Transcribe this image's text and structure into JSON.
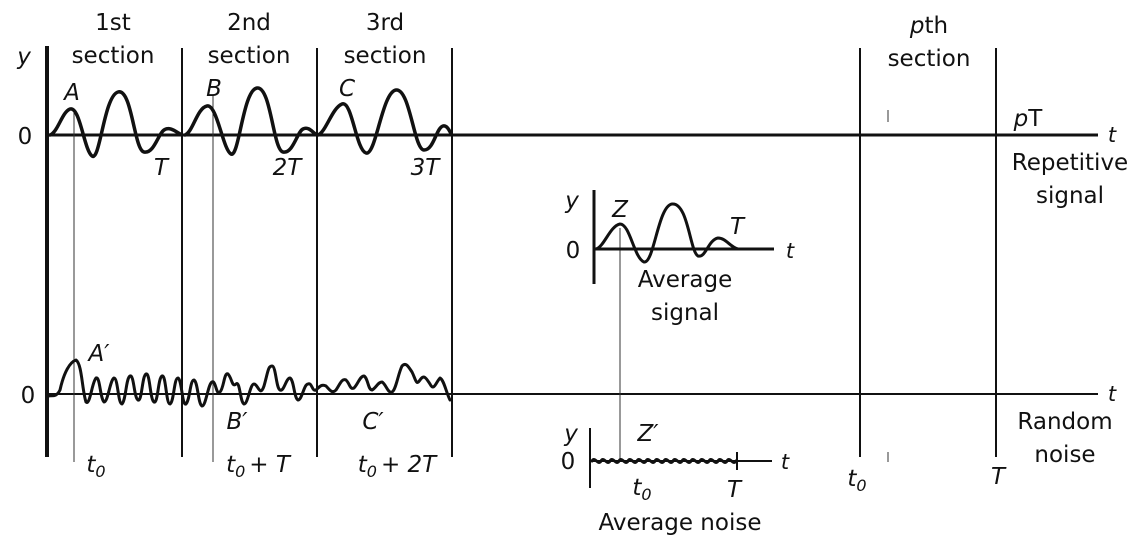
{
  "sections": {
    "first": [
      "1st",
      "section"
    ],
    "second": [
      "2nd",
      "section"
    ],
    "third": [
      "3rd",
      "section"
    ],
    "pth_p": "p",
    "pth_rest": "th",
    "pth_section": "section"
  },
  "signal_axis": {
    "y_label": "y",
    "zero_label": "0",
    "t_label": "t",
    "pT_p": "p",
    "pT_T": "T",
    "points": {
      "A": "A",
      "B": "B",
      "C": "C"
    },
    "periods": {
      "T": "T",
      "two_T": "2T",
      "three_T": "3T"
    },
    "caption": [
      "Repetitive",
      "signal"
    ]
  },
  "noise_axis": {
    "zero_label": "0",
    "t_label": "t",
    "points": {
      "A_prime": "A′",
      "B_prime": "B′",
      "C_prime": "C′"
    },
    "caption": [
      "Random",
      "noise"
    ]
  },
  "time_marks": {
    "t0_base": "t",
    "t0_sub": "0",
    "t0_plus_T": "+ T",
    "t0_plus_2T": "+ 2T",
    "pth_t0_base": "t",
    "pth_t0_sub": "0",
    "pth_T": "T"
  },
  "average_signal": {
    "y_label": "y",
    "zero_label": "0",
    "t_label": "t",
    "Z": "Z",
    "T": "T",
    "caption": [
      "Average",
      "signal"
    ]
  },
  "average_noise": {
    "y_label": "y",
    "zero_label": "0",
    "t_label": "t",
    "Z_prime": "Z′",
    "t0_base": "t",
    "t0_sub": "0",
    "T": "T",
    "caption": "Average noise"
  }
}
